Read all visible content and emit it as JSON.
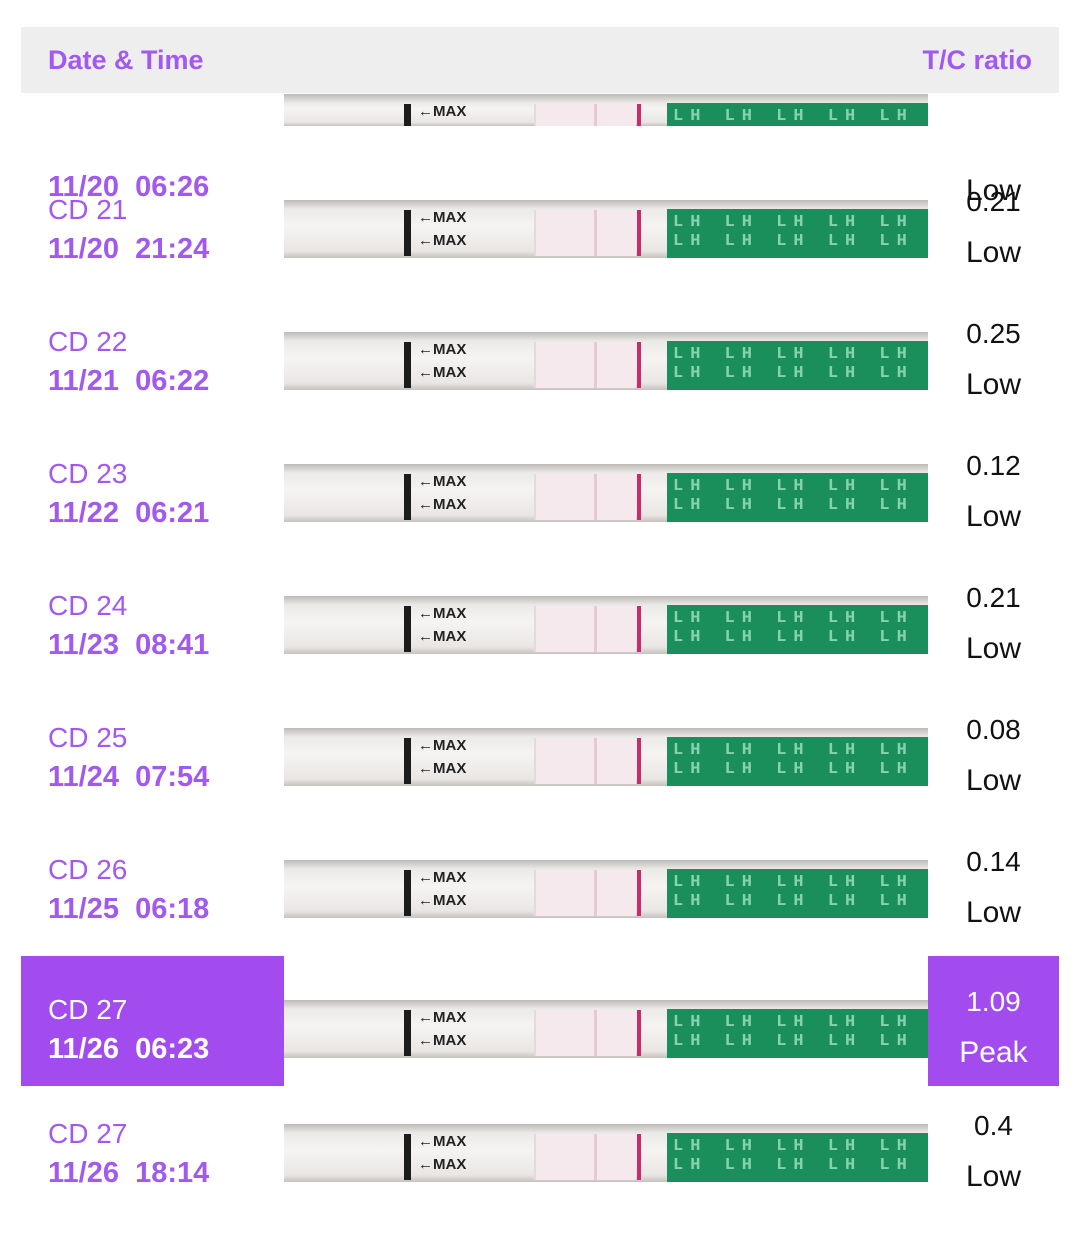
{
  "header": {
    "date_time_label": "Date & Time",
    "tc_ratio_label": "T/C ratio"
  },
  "strip_text": {
    "max_label": "←MAX",
    "lh_pattern": "LH LH LH LH LH LH LH"
  },
  "colors": {
    "accent": "#a259f0",
    "highlight_bg": "#a24cf0",
    "header_bg": "#eeeeee",
    "strip_green": "#1a8f5c",
    "control_line": "#cc2a6c"
  },
  "rows": [
    {
      "cd": "",
      "date": "11/20",
      "time": "06:26",
      "ratio": "",
      "level": "Low",
      "highlight": false
    },
    {
      "cd": "CD 21",
      "date": "11/20",
      "time": "21:24",
      "ratio": "0.21",
      "level": "Low",
      "highlight": false
    },
    {
      "cd": "CD 22",
      "date": "11/21",
      "time": "06:22",
      "ratio": "0.25",
      "level": "Low",
      "highlight": false
    },
    {
      "cd": "CD 23",
      "date": "11/22",
      "time": "06:21",
      "ratio": "0.12",
      "level": "Low",
      "highlight": false
    },
    {
      "cd": "CD 24",
      "date": "11/23",
      "time": "08:41",
      "ratio": "0.21",
      "level": "Low",
      "highlight": false
    },
    {
      "cd": "CD 25",
      "date": "11/24",
      "time": "07:54",
      "ratio": "0.08",
      "level": "Low",
      "highlight": false
    },
    {
      "cd": "CD 26",
      "date": "11/25",
      "time": "06:18",
      "ratio": "0.14",
      "level": "Low",
      "highlight": false
    },
    {
      "cd": "CD 27",
      "date": "11/26",
      "time": "06:23",
      "ratio": "1.09",
      "level": "Peak",
      "highlight": true
    },
    {
      "cd": "CD 27",
      "date": "11/26",
      "time": "18:14",
      "ratio": "0.4",
      "level": "Low",
      "highlight": false
    }
  ]
}
